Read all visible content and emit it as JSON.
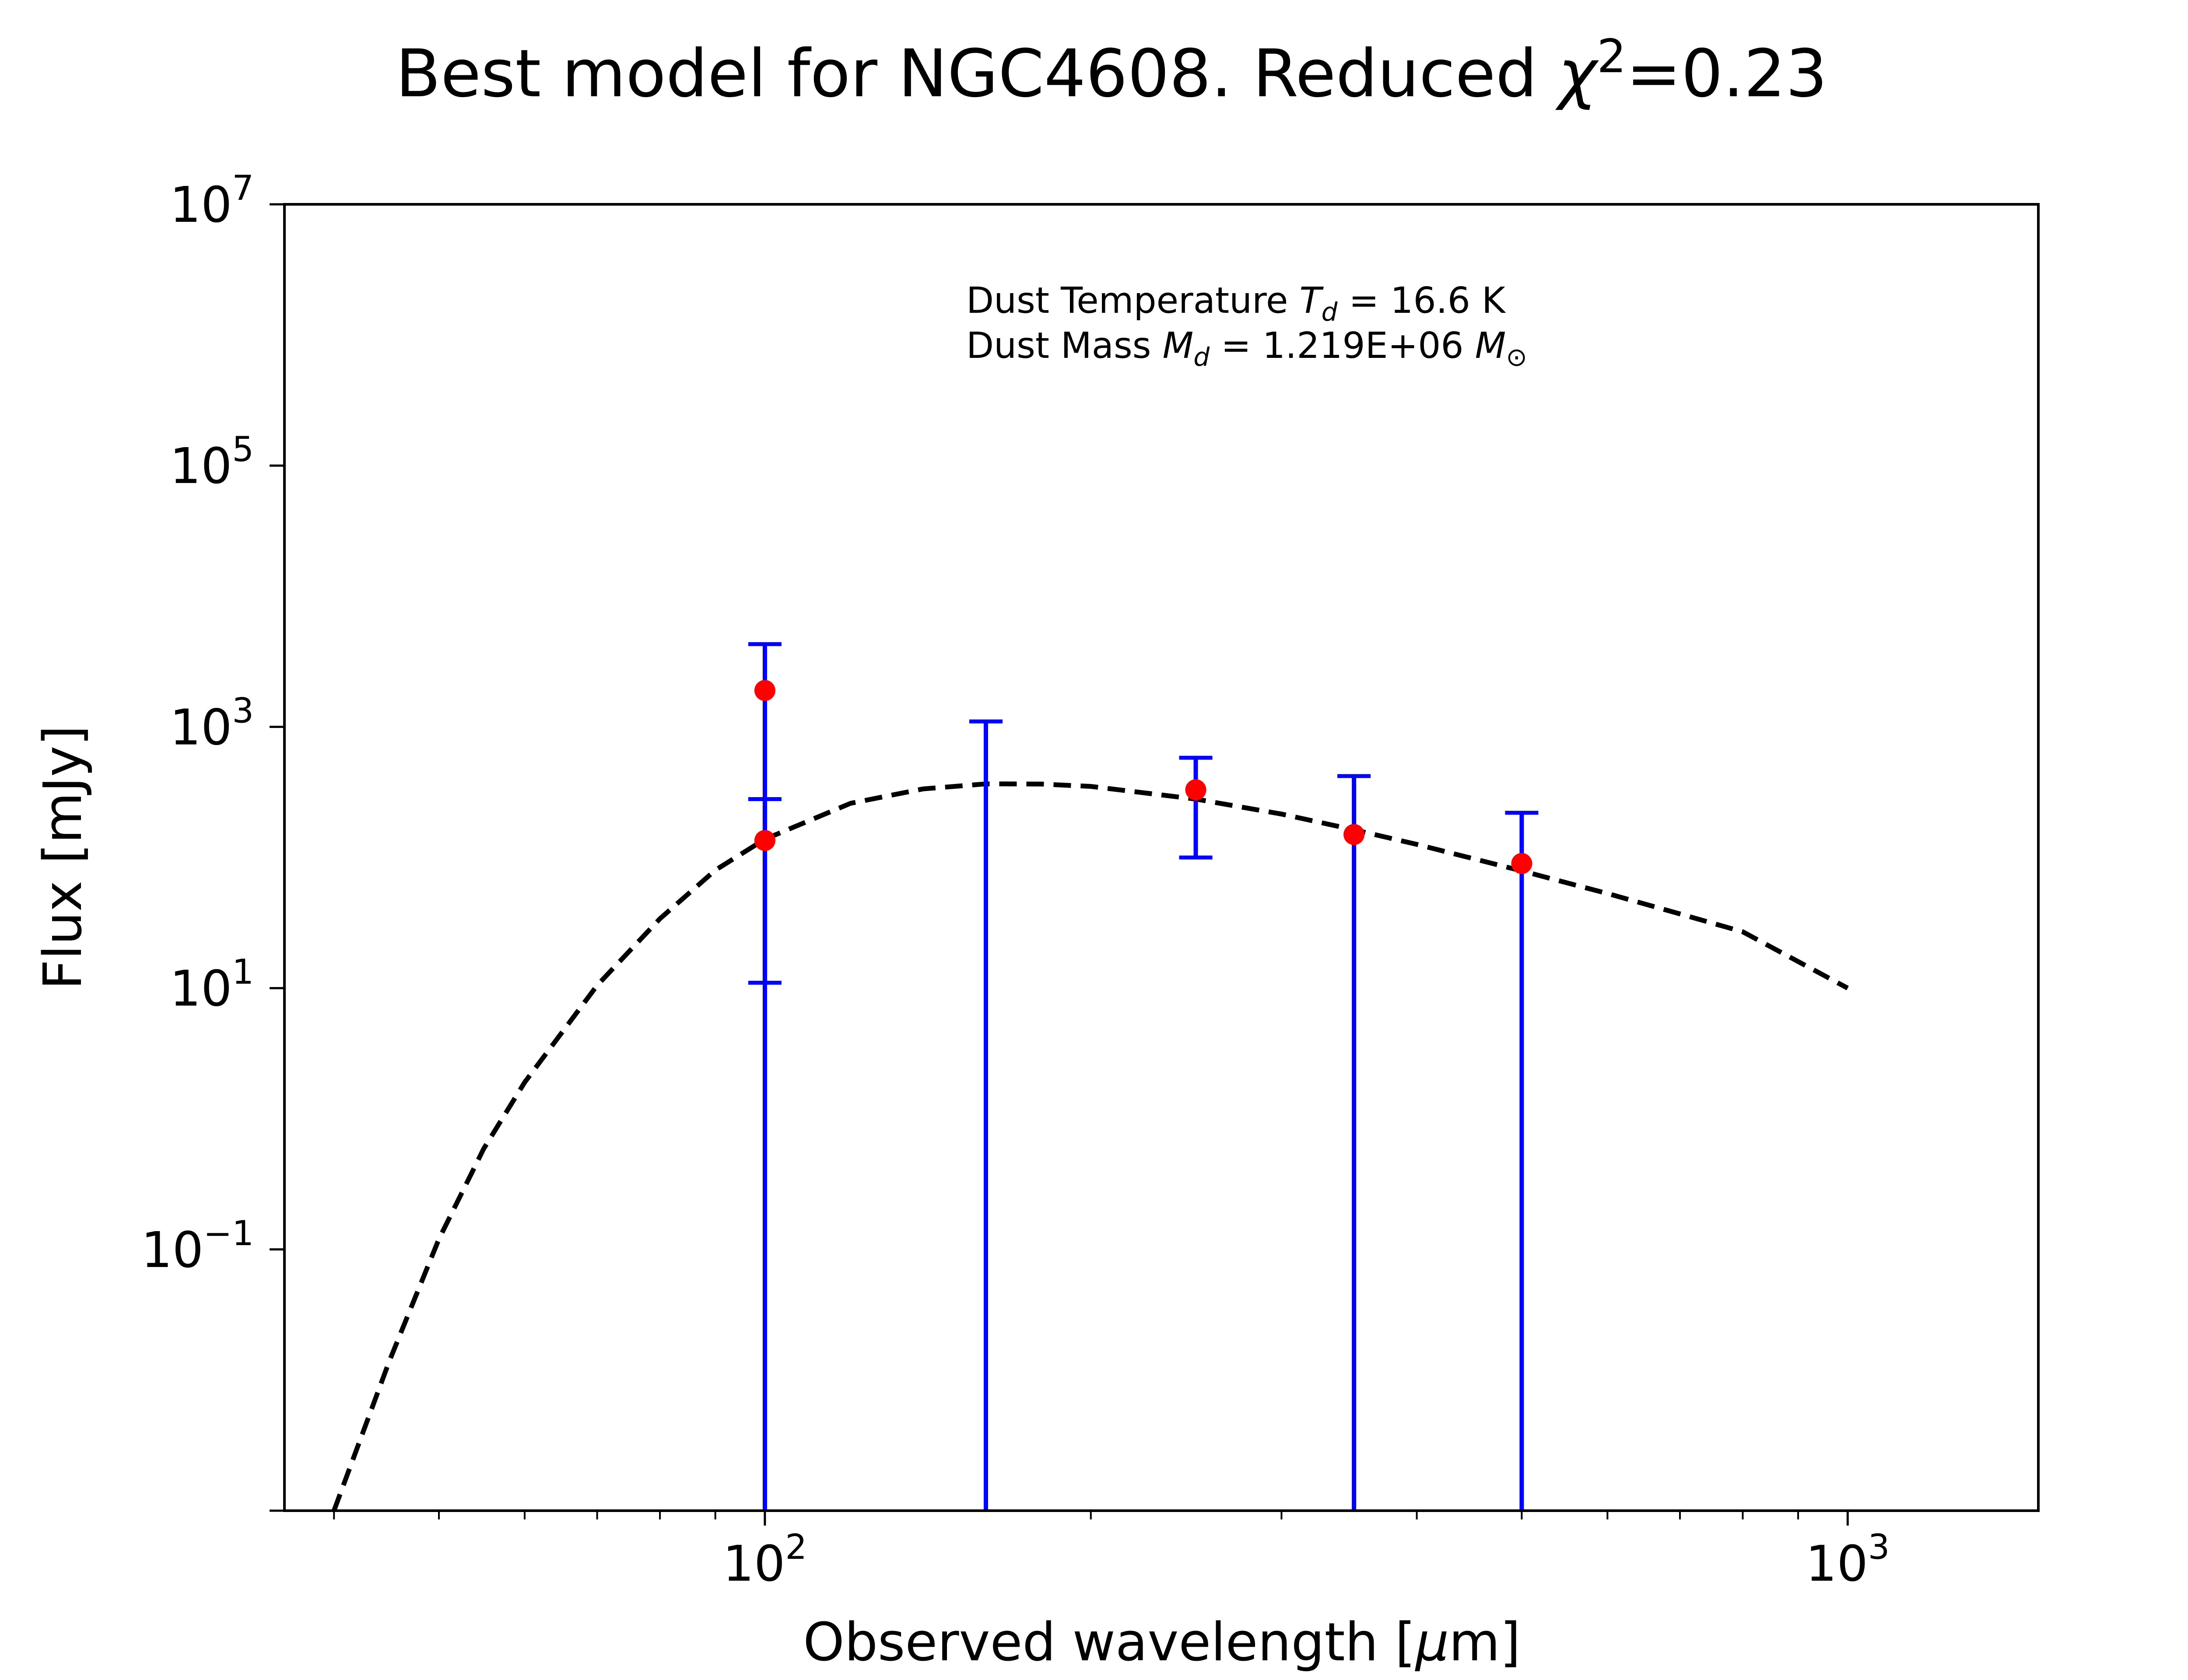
{
  "chart_data": {
    "type": "scatter",
    "title": {
      "prefix": "Best model for NGC4608. Reduced ",
      "chi_symbol": "χ",
      "chi_exponent": "2",
      "suffix": "=0.23"
    },
    "xlabel": {
      "prefix": "Observed wavelength [",
      "mu": "μ",
      "suffix": "m]"
    },
    "ylabel": "Flux [mJy]",
    "x_scale": "log",
    "y_scale": "log",
    "xlim": [
      36,
      1500
    ],
    "ylim": [
      0.001,
      10000000
    ],
    "x_ticks": [
      {
        "value": 100,
        "base": "10",
        "exp": "2"
      },
      {
        "value": 1000,
        "base": "10",
        "exp": "3"
      }
    ],
    "y_ticks": [
      {
        "value": 0.1,
        "base": "10",
        "exp": "−1"
      },
      {
        "value": 10,
        "base": "10",
        "exp": "1"
      },
      {
        "value": 1000,
        "base": "10",
        "exp": "3"
      },
      {
        "value": 100000,
        "base": "10",
        "exp": "5"
      },
      {
        "value": 10000000,
        "base": "10",
        "exp": "7"
      }
    ],
    "annotation": {
      "line1_prefix": "Dust Temperature ",
      "line1_symbol": "T",
      "line1_sub": "d",
      "line1_value": " = 16.6 K",
      "line2_prefix": "Dust Mass ",
      "line2_symbol": "M",
      "line2_sub": "d",
      "line2_value": " = 1.219E+06 ",
      "line2_unit_symbol": "M",
      "line2_unit_sub": "⊙"
    },
    "model_curve": {
      "style": "dashed",
      "color": "#000000",
      "points": [
        [
          40,
          0.001
        ],
        [
          45,
          0.014
        ],
        [
          50,
          0.12
        ],
        [
          55,
          0.59
        ],
        [
          60,
          1.9
        ],
        [
          70,
          10.5
        ],
        [
          80,
          34
        ],
        [
          90,
          80
        ],
        [
          100,
          138
        ],
        [
          120,
          260
        ],
        [
          140,
          335
        ],
        [
          160,
          366
        ],
        [
          180,
          365
        ],
        [
          200,
          350
        ],
        [
          250,
          280
        ],
        [
          300,
          215
        ],
        [
          350,
          163
        ],
        [
          400,
          126
        ],
        [
          500,
          79
        ],
        [
          600,
          53
        ],
        [
          700,
          37
        ],
        [
          800,
          27
        ],
        [
          1000,
          10
        ]
      ]
    },
    "data_points": {
      "marker_color": "#ff0000",
      "errorbar_color": "#0000ff",
      "points": [
        {
          "x": 100,
          "y": 1900,
          "y_low": 0.001,
          "y_high": 4300
        },
        {
          "x": 100,
          "y": 135,
          "y_low": 11,
          "y_high": 280
        }
      ],
      "upper_limit_bars": [
        {
          "x": 160,
          "y_low": 0.001,
          "y_high": 1100
        }
      ],
      "points_more": [
        {
          "x": 250,
          "y": 330,
          "y_low": 100,
          "y_high": 580
        },
        {
          "x": 350,
          "y": 150,
          "y_low": 0.001,
          "y_high": 420
        },
        {
          "x": 500,
          "y": 90,
          "y_low": 0.001,
          "y_high": 220
        }
      ]
    }
  }
}
